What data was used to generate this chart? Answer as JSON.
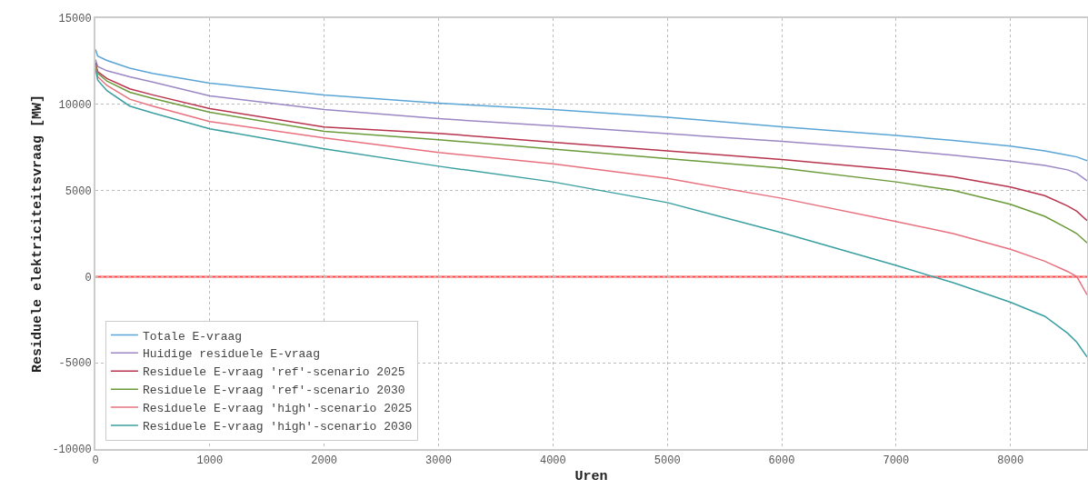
{
  "chart_data": {
    "type": "line",
    "xlabel": "Uren",
    "ylabel": "Residuele elektriciteitsvraag [MW]",
    "xlim": [
      0,
      8670
    ],
    "xticks": [
      0,
      1000,
      2000,
      3000,
      4000,
      5000,
      6000,
      7000,
      8000
    ],
    "ylim": [
      -10000,
      15000
    ],
    "yticks": [
      -10000,
      -5000,
      0,
      5000,
      10000,
      15000
    ],
    "grid": true,
    "legend": "bottom left",
    "line_style": "solid",
    "marker": "none",
    "x": [
      0,
      20,
      100,
      300,
      500,
      1000,
      2000,
      3000,
      4000,
      5000,
      6000,
      7000,
      7500,
      8000,
      8300,
      8500,
      8580,
      8670
    ],
    "series": [
      {
        "name": "Totale E-vraag",
        "color": "#5aa5d6",
        "values": [
          13200,
          12800,
          12550,
          12100,
          11800,
          11230,
          10540,
          10070,
          9700,
          9250,
          8700,
          8200,
          7900,
          7580,
          7300,
          7050,
          6950,
          6730
        ]
      },
      {
        "name": "Huidige residuele E-vraag",
        "color": "#9b87c4",
        "values": [
          12600,
          12200,
          11950,
          11600,
          11300,
          10490,
          9700,
          9170,
          8750,
          8300,
          7850,
          7350,
          7050,
          6700,
          6450,
          6200,
          6000,
          5560
        ]
      },
      {
        "name": "Residuele E-vraag 'ref'-scenario 2025",
        "color": "#b8334d",
        "values": [
          12400,
          11900,
          11500,
          10900,
          10550,
          9750,
          8690,
          8320,
          7800,
          7300,
          6800,
          6200,
          5800,
          5200,
          4700,
          4100,
          3800,
          3250
        ]
      },
      {
        "name": "Residuele E-vraag 'ref'-scenario 2030",
        "color": "#6a9a3a",
        "values": [
          12300,
          11800,
          11350,
          10700,
          10350,
          9540,
          8430,
          7950,
          7400,
          6850,
          6300,
          5500,
          5000,
          4200,
          3500,
          2800,
          2500,
          1960
        ]
      },
      {
        "name": "Residuele E-vraag 'high'-scenario 2025",
        "color": "#e8707e",
        "values": [
          12200,
          11600,
          11100,
          10300,
          9900,
          9000,
          8050,
          7210,
          6550,
          5700,
          4550,
          3200,
          2500,
          1590,
          900,
          300,
          0,
          -1060
        ]
      },
      {
        "name": "Residuele E-vraag 'high'-scenario 2030",
        "color": "#3a9fa0",
        "values": [
          12100,
          11400,
          10800,
          9900,
          9500,
          8580,
          7420,
          6410,
          5500,
          4300,
          2550,
          650,
          -350,
          -1480,
          -2300,
          -3280,
          -3800,
          -4660
        ]
      }
    ],
    "ref_lines": [
      {
        "axis": "y",
        "value": 0,
        "color": "#ff4040",
        "line_style": "solid"
      }
    ]
  }
}
